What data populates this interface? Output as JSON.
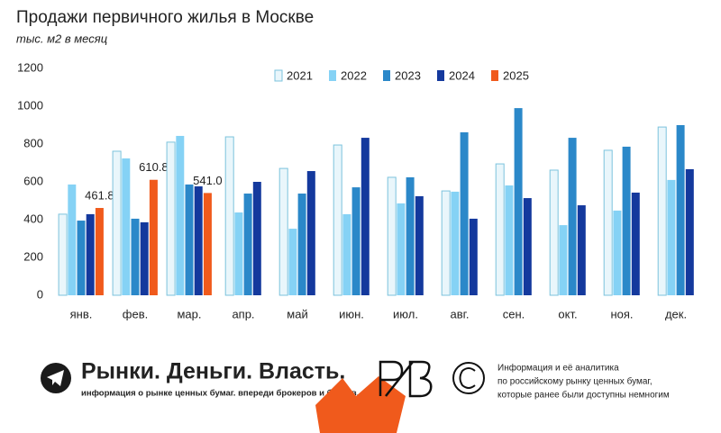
{
  "chart_data": {
    "type": "bar",
    "title": "Продажи первичного жилья в Москве",
    "subtitle": "тыс. м2 в месяц",
    "categories": [
      "янв.",
      "фев.",
      "мар.",
      "апр.",
      "май",
      "июн.",
      "июл.",
      "авг.",
      "сен.",
      "окт.",
      "ноя.",
      "дек."
    ],
    "series": [
      {
        "name": "2021",
        "color": "#e9f6fb",
        "values": [
          429,
          762,
          810,
          838,
          671,
          795,
          624,
          552,
          695,
          662,
          767,
          890
        ]
      },
      {
        "name": "2022",
        "color": "#85d2f5",
        "values": [
          586,
          724,
          843,
          438,
          352,
          429,
          486,
          548,
          581,
          371,
          448,
          610
        ]
      },
      {
        "name": "2023",
        "color": "#2b88c9",
        "values": [
          395,
          405,
          586,
          538,
          538,
          571,
          624,
          862,
          990,
          833,
          786,
          900
        ]
      },
      {
        "name": "2024",
        "color": "#14399d",
        "values": [
          429,
          386,
          576,
          600,
          657,
          833,
          524,
          405,
          514,
          476,
          543,
          667
        ]
      },
      {
        "name": "2025",
        "color": "#f05a1c",
        "values": [
          461.8,
          610.8,
          541.0,
          null,
          null,
          null,
          null,
          null,
          null,
          null,
          null,
          null
        ],
        "value_labels": [
          "461.8",
          "610.8",
          "541.0",
          null,
          null,
          null,
          null,
          null,
          null,
          null,
          null,
          null
        ]
      }
    ],
    "ylim": [
      0,
      1200
    ],
    "yticks": [
      0,
      200,
      400,
      600,
      800,
      1000,
      1200
    ],
    "grid": false,
    "legend": "top"
  },
  "footer": {
    "brand": "Рынки. Деньги. Власть.",
    "tagline": "информация о рынке ценных бумаг. впереди брокеров и банков.",
    "description": [
      "Информация и её аналитика",
      "по российскому рынку ценных бумаг,",
      "которые ранее были доступны немногим"
    ]
  }
}
